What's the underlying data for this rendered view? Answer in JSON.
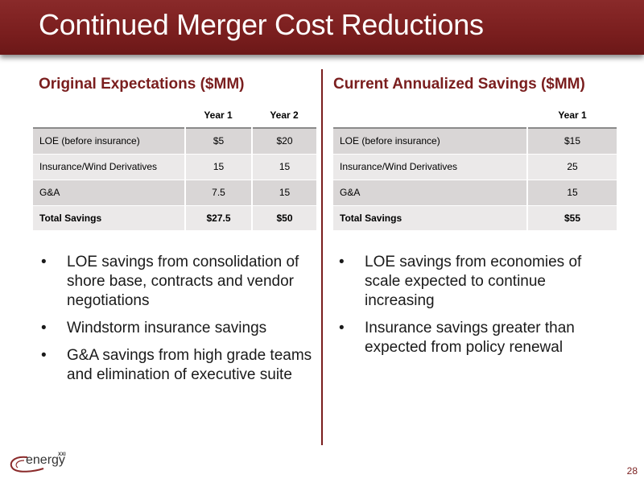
{
  "title": "Continued Merger Cost Reductions",
  "left": {
    "heading": "Original Expectations ($MM)",
    "col_headers": [
      "Year 1",
      "Year 2"
    ],
    "rows": [
      [
        "LOE (before insurance)",
        "$5",
        "$20"
      ],
      [
        "Insurance/Wind Derivatives",
        "15",
        "15"
      ],
      [
        "G&A",
        "7.5",
        "15"
      ],
      [
        "Total Savings",
        "$27.5",
        "$50"
      ]
    ],
    "bullets": [
      "LOE savings from consolidation of shore base, contracts and vendor negotiations",
      "Windstorm insurance savings",
      "G&A savings from high grade teams and elimination of executive suite"
    ]
  },
  "right": {
    "heading": "Current Annualized Savings ($MM)",
    "col_headers": [
      "Year 1"
    ],
    "rows": [
      [
        "LOE (before insurance)",
        "$15"
      ],
      [
        "Insurance/Wind Derivatives",
        "25"
      ],
      [
        "G&A",
        "15"
      ],
      [
        "Total Savings",
        "$55"
      ]
    ],
    "bullets": [
      "LOE savings from economies of scale expected to continue increasing",
      "Insurance savings greater than expected from policy renewal"
    ]
  },
  "bullet_glyph": "•",
  "logo": {
    "word": "energy",
    "suffix": "XXI"
  },
  "page_number": "28",
  "colors": {
    "accent": "#7a1e1e",
    "row_dark": "#d9d6d6",
    "row_light": "#ebe9e9"
  }
}
